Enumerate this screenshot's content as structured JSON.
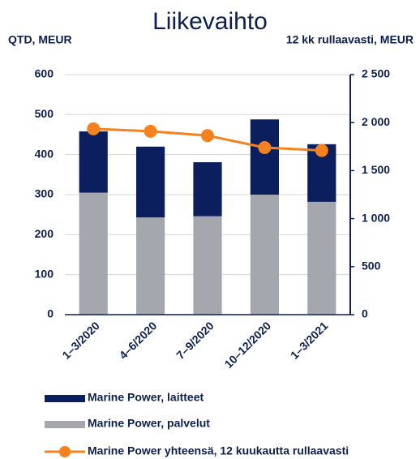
{
  "chart_data": {
    "type": "bar",
    "title": "Liikevaihto",
    "y_axis_label": "QTD, MEUR",
    "y2_axis_label": "12 kk rullaavasti, MEUR",
    "categories": [
      "1–3/2020",
      "4–6/2020",
      "7–9/2020",
      "10–12/2020",
      "1–3/2021"
    ],
    "series": [
      {
        "name": "Marine Power, laitteet",
        "type": "bar",
        "color": "#0b1f5e",
        "values": [
          153,
          177,
          135,
          188,
          144
        ]
      },
      {
        "name": "Marine Power, palvelut",
        "type": "bar",
        "color": "#a5a7ae",
        "values": [
          305,
          243,
          246,
          300,
          282
        ]
      },
      {
        "name": "Marine Power yhteensä, 12 kuukautta rullaavasti",
        "type": "line",
        "axis": "y2",
        "color": "#f5821f",
        "values": [
          1935,
          1910,
          1865,
          1740,
          1710
        ]
      }
    ],
    "ylim": [
      0,
      600
    ],
    "yticks": [
      0,
      100,
      200,
      300,
      400,
      500,
      600
    ],
    "y2lim": [
      0,
      2500
    ],
    "y2ticks": [
      0,
      500,
      {
        "value": 1000,
        "label": "1 000"
      },
      {
        "value": 1500,
        "label": "1 500"
      },
      {
        "value": 2000,
        "label": "2 000"
      },
      {
        "value": 2500,
        "label": "2 500"
      }
    ],
    "grid": true,
    "stacked": true
  }
}
